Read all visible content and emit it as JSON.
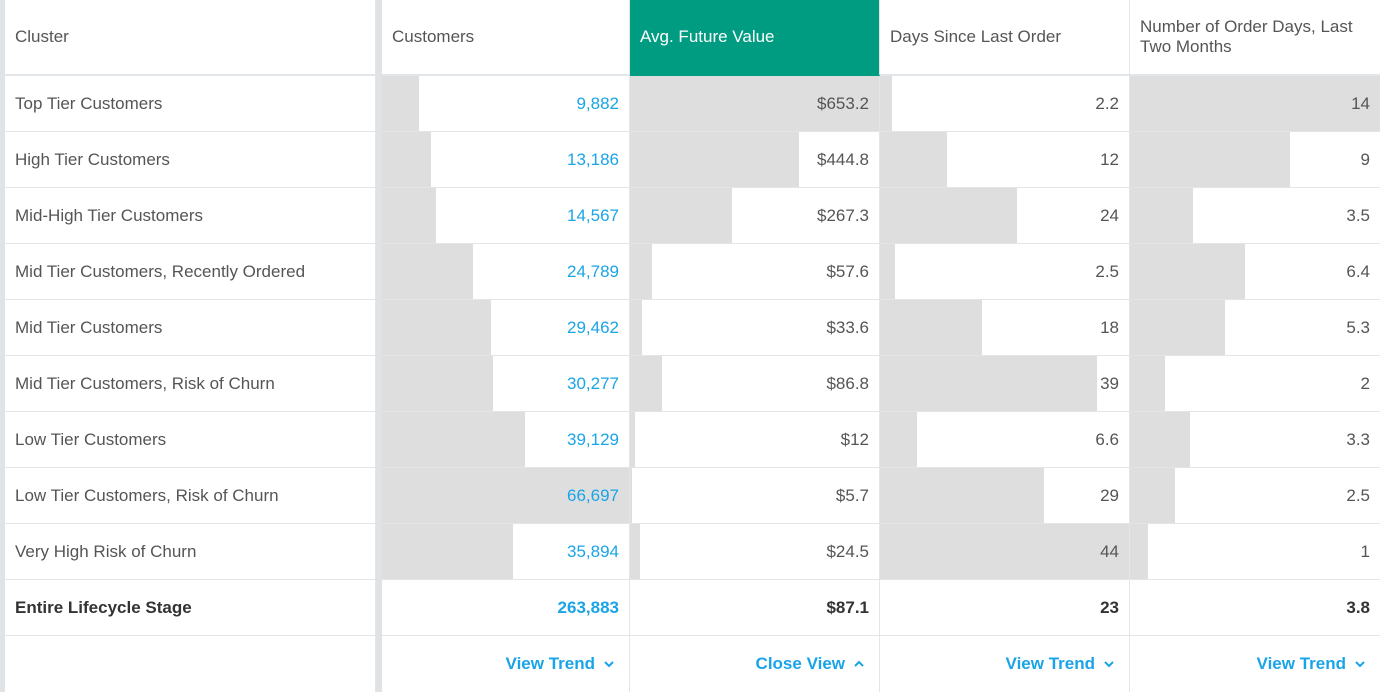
{
  "headers": [
    "Cluster",
    "Customers",
    "Avg. Future Value",
    "Days Since Last Order",
    "Number of Order Days, Last Two Months"
  ],
  "active_column": 2,
  "accent_color": "#009c81",
  "link_color": "#1aa4e8",
  "rows": [
    {
      "label": "Top Tier Customers",
      "customers": "9,882",
      "afv": "$653.2",
      "dslo": "2.2",
      "nod": "14",
      "bars": [
        0.15,
        1.0,
        0.05,
        1.0
      ]
    },
    {
      "label": "High Tier Customers",
      "customers": "13,186",
      "afv": "$444.8",
      "dslo": "12",
      "nod": "9",
      "bars": [
        0.2,
        0.68,
        0.27,
        0.64
      ]
    },
    {
      "label": "Mid-High Tier Customers",
      "customers": "14,567",
      "afv": "$267.3",
      "dslo": "24",
      "nod": "3.5",
      "bars": [
        0.22,
        0.41,
        0.55,
        0.25
      ]
    },
    {
      "label": "Mid Tier Customers, Recently Ordered",
      "customers": "24,789",
      "afv": "$57.6",
      "dslo": "2.5",
      "nod": "6.4",
      "bars": [
        0.37,
        0.09,
        0.06,
        0.46
      ]
    },
    {
      "label": "Mid Tier Customers",
      "customers": "29,462",
      "afv": "$33.6",
      "dslo": "18",
      "nod": "5.3",
      "bars": [
        0.44,
        0.05,
        0.41,
        0.38
      ]
    },
    {
      "label": "Mid Tier Customers, Risk of Churn",
      "customers": "30,277",
      "afv": "$86.8",
      "dslo": "39",
      "nod": "2",
      "bars": [
        0.45,
        0.13,
        0.87,
        0.14
      ]
    },
    {
      "label": "Low Tier Customers",
      "customers": "39,129",
      "afv": "$12",
      "dslo": "6.6",
      "nod": "3.3",
      "bars": [
        0.58,
        0.02,
        0.15,
        0.24
      ]
    },
    {
      "label": "Low Tier Customers, Risk of Churn",
      "customers": "66,697",
      "afv": "$5.7",
      "dslo": "29",
      "nod": "2.5",
      "bars": [
        1.0,
        0.01,
        0.66,
        0.18
      ]
    },
    {
      "label": "Very High Risk of Churn",
      "customers": "35,894",
      "afv": "$24.5",
      "dslo": "44",
      "nod": "1",
      "bars": [
        0.53,
        0.04,
        1.0,
        0.07
      ]
    }
  ],
  "total": {
    "label": "Entire Lifecycle Stage",
    "customers": "263,883",
    "afv": "$87.1",
    "dslo": "23",
    "nod": "3.8"
  },
  "footer": {
    "customers_action": "View Trend",
    "afv_action": "Close View",
    "dslo_action": "View Trend",
    "nod_action": "View Trend"
  }
}
